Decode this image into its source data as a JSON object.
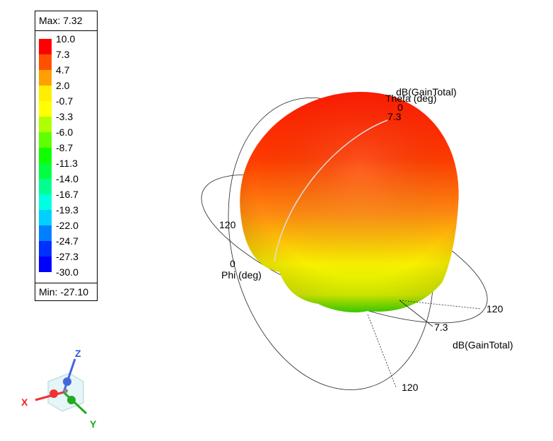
{
  "legend": {
    "max_label": "Max: 7.32",
    "min_label": "Min: -27.10",
    "levels": [
      "10.0",
      "7.3",
      "4.7",
      "2.0",
      "-0.7",
      "-3.3",
      "-6.0",
      "-8.7",
      "-11.3",
      "-14.0",
      "-16.7",
      "-19.3",
      "-22.0",
      "-24.7",
      "-27.3",
      "-30.0"
    ],
    "swatch_colors": [
      "#ff0000",
      "#ff5000",
      "#ffa000",
      "#ffee00",
      "#ffff00",
      "#b0ff00",
      "#60ff00",
      "#10ff00",
      "#00ff40",
      "#00ff90",
      "#00ffe0",
      "#00d0ff",
      "#0080ff",
      "#0030ff",
      "#0000ff"
    ]
  },
  "plot": {
    "theta_title": "dB(GainTotal)",
    "theta_axis": "Theta (deg)",
    "theta_zero": "0",
    "theta_peak": "7.3",
    "phi_tick": "120",
    "phi_zero": "0",
    "phi_axis": "Phi (deg)",
    "right_tick": "120",
    "right_peak": "7.3",
    "right_title": "dB(GainTotal)",
    "bottom_tick": "120"
  },
  "triad": {
    "x": "X",
    "y": "Y",
    "z": "Z"
  }
}
